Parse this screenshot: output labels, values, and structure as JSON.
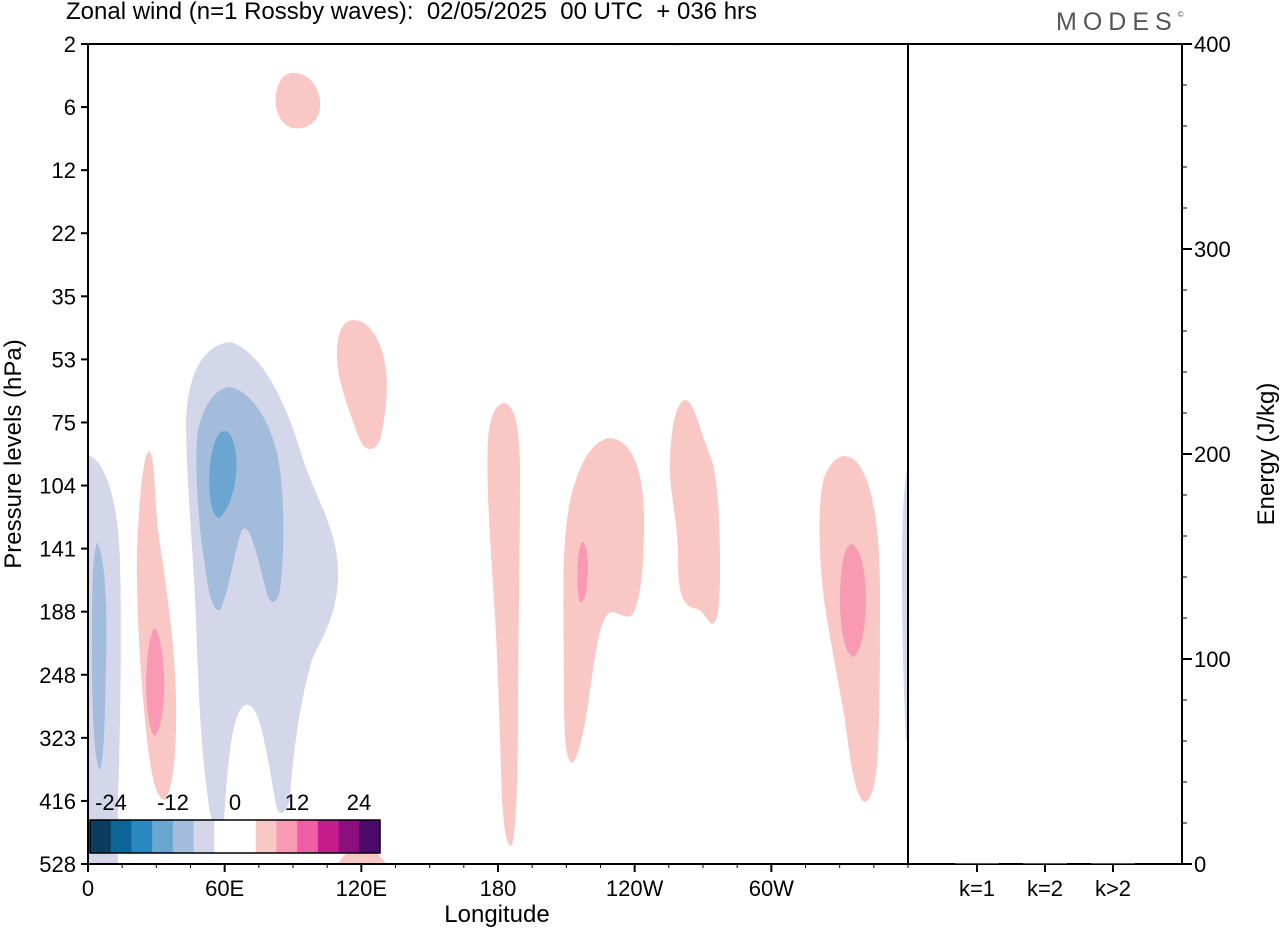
{
  "header": {
    "title": "Zonal wind (n=1 Rossby waves):  02/05/2025  00 UTC  + 036 hrs",
    "logo": "MODES",
    "logo_mark": "©"
  },
  "chart_data": [
    {
      "type": "heatmap",
      "panel": "main",
      "xlabel": "Longitude",
      "ylabel": "Pressure levels (hPa)",
      "x_ticks": [
        "0",
        "60E",
        "120E",
        "180",
        "120W",
        "60W"
      ],
      "x_tick_values": [
        0,
        60,
        120,
        180,
        240,
        300
      ],
      "xlim": [
        0,
        360
      ],
      "y_ticks": [
        "2",
        "6",
        "12",
        "22",
        "35",
        "53",
        "75",
        "104",
        "141",
        "188",
        "248",
        "323",
        "416",
        "528"
      ],
      "y_axis_inverted": true,
      "colorbar": {
        "labels": [
          "-24",
          "-12",
          "0",
          "12",
          "24"
        ],
        "label_values": [
          -24,
          -12,
          0,
          12,
          24
        ],
        "levels": [
          -30,
          -27,
          -24,
          -21,
          -18,
          -15,
          -12,
          -9,
          -6,
          -3,
          3,
          6,
          9,
          12,
          15,
          18,
          21,
          24,
          27,
          30
        ],
        "colors": [
          "#0b3d5e",
          "#0c6596",
          "#2a88c0",
          "#6aa6cf",
          "#a3bcdb",
          "#d4d6e9",
          "#ffffff",
          "#ffffff",
          "#f9c8c4",
          "#f89ab4",
          "#ef5ea4",
          "#c71d8c",
          "#8b0f7e",
          "#4b0a6a"
        ]
      },
      "fields": [
        {
          "lon": 5,
          "level": "248",
          "value": -6
        },
        {
          "lon": 60,
          "level": "104",
          "value": -9
        },
        {
          "lon": 10,
          "level": "188",
          "value": -3
        },
        {
          "lon": 30,
          "level": "248",
          "value": 6
        },
        {
          "lon": 105,
          "level": "6",
          "value": 3
        },
        {
          "lon": 122,
          "level": "75",
          "value": 3
        },
        {
          "lon": 182,
          "level": "188",
          "value": 3
        },
        {
          "lon": 218,
          "level": "141",
          "value": 6
        },
        {
          "lon": 252,
          "level": "104",
          "value": 3
        },
        {
          "lon": 335,
          "level": "188",
          "value": 6
        }
      ],
      "grid": false
    },
    {
      "type": "bar",
      "panel": "energy",
      "categories": [
        "k=1",
        "k=2",
        "k>2"
      ],
      "values": [
        0.5,
        0.2,
        0.3
      ],
      "ylabel": "Energy (J/kg)",
      "y_ticks": [
        "0",
        "100",
        "200",
        "300",
        "400"
      ],
      "ylim": [
        0,
        400
      ]
    }
  ]
}
